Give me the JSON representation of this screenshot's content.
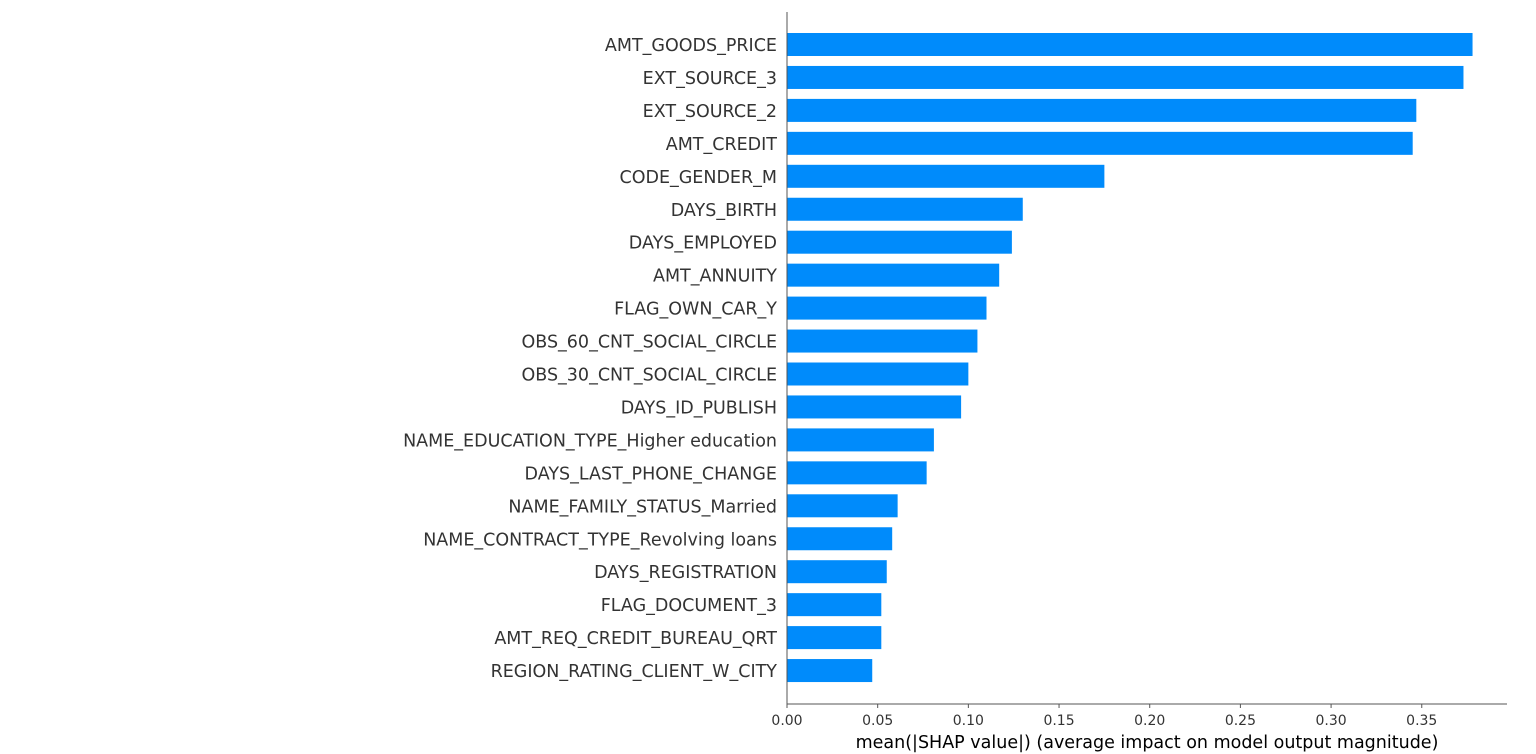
{
  "chart_data": {
    "type": "bar",
    "orientation": "horizontal",
    "title": "",
    "xlabel": "mean(|SHAP value|) (average impact on model output magnitude)",
    "ylabel": "",
    "xlim": [
      0,
      0.397
    ],
    "xticks": [
      0.0,
      0.05,
      0.1,
      0.15,
      0.2,
      0.25,
      0.3,
      0.35
    ],
    "xtick_labels": [
      "0.00",
      "0.05",
      "0.10",
      "0.15",
      "0.20",
      "0.25",
      "0.30",
      "0.35"
    ],
    "grid": false,
    "bar_color": "#008bfb",
    "categories": [
      "AMT_GOODS_PRICE",
      "EXT_SOURCE_3",
      "EXT_SOURCE_2",
      "AMT_CREDIT",
      "CODE_GENDER_M",
      "DAYS_BIRTH",
      "DAYS_EMPLOYED",
      "AMT_ANNUITY",
      "FLAG_OWN_CAR_Y",
      "OBS_60_CNT_SOCIAL_CIRCLE",
      "OBS_30_CNT_SOCIAL_CIRCLE",
      "DAYS_ID_PUBLISH",
      "NAME_EDUCATION_TYPE_Higher education",
      "DAYS_LAST_PHONE_CHANGE",
      "NAME_FAMILY_STATUS_Married",
      "NAME_CONTRACT_TYPE_Revolving loans",
      "DAYS_REGISTRATION",
      "FLAG_DOCUMENT_3",
      "AMT_REQ_CREDIT_BUREAU_QRT",
      "REGION_RATING_CLIENT_W_CITY"
    ],
    "values": [
      0.378,
      0.373,
      0.347,
      0.345,
      0.175,
      0.13,
      0.124,
      0.117,
      0.11,
      0.105,
      0.1,
      0.096,
      0.081,
      0.077,
      0.061,
      0.058,
      0.055,
      0.052,
      0.052,
      0.047
    ]
  }
}
